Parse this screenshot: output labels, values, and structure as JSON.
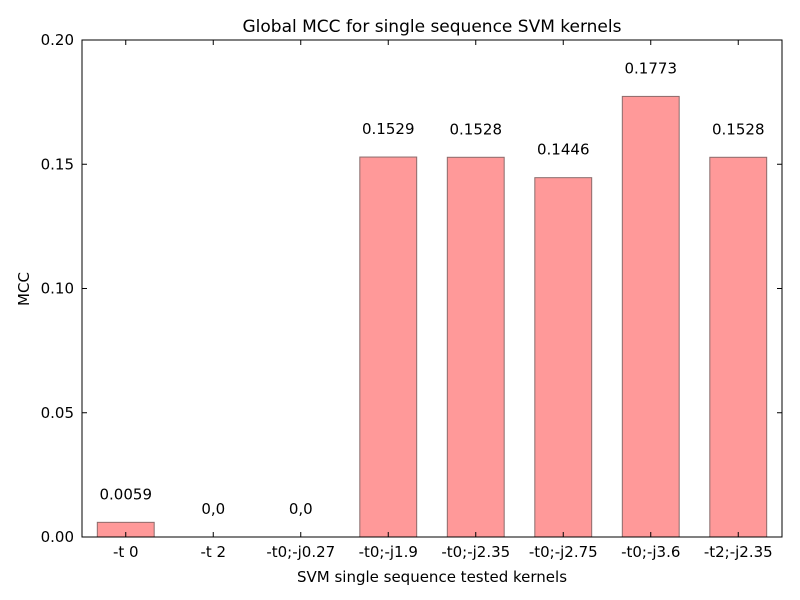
{
  "chart_data": {
    "type": "bar",
    "title": "Global MCC for single sequence SVM kernels",
    "xlabel": "SVM single sequence tested kernels",
    "ylabel": "MCC",
    "categories": [
      "-t 0",
      "-t 2",
      "-t0;-j0.27",
      "-t0;-j1.9",
      "-t0;-j2.35",
      "-t0;-j2.75",
      "-t0;-j3.6",
      "-t2;-j2.35"
    ],
    "values": [
      0.0059,
      0.0,
      0.0,
      0.1529,
      0.1528,
      0.1446,
      0.1773,
      0.1528
    ],
    "data_labels": [
      "0.0059",
      "0,0",
      "0,0",
      "0.1529",
      "0.1528",
      "0.1446",
      "0.1773",
      "0.1528"
    ],
    "ylim": [
      0,
      0.2
    ],
    "yticks": [
      0.0,
      0.05,
      0.1,
      0.15,
      0.2
    ],
    "ytick_labels": [
      "0.00",
      "0.05",
      "0.10",
      "0.15",
      "0.20"
    ],
    "grid": false,
    "bar_color": "#ff9999",
    "bar_edge_color": "#8b6b6b"
  }
}
